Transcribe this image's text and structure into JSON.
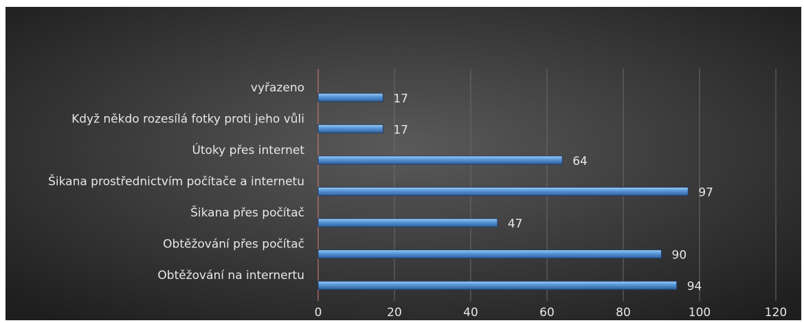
{
  "chart_data": {
    "type": "bar",
    "orientation": "horizontal",
    "categories": [
      "vyřazeno",
      "Když někdo rozesílá fotky proti jeho vůli",
      "Útoky přes internet",
      "Šikana prostřednictvím počítače a internetu",
      "Šikana přes počítač",
      "Obtěžování přes počítač",
      "Obtěžování na internertu"
    ],
    "values": [
      17,
      17,
      64,
      97,
      47,
      90,
      94
    ],
    "color": "#5b9bd5",
    "xlim": [
      0,
      120
    ],
    "xticks": [
      0,
      20,
      40,
      60,
      80,
      100,
      120
    ],
    "grid": true
  }
}
